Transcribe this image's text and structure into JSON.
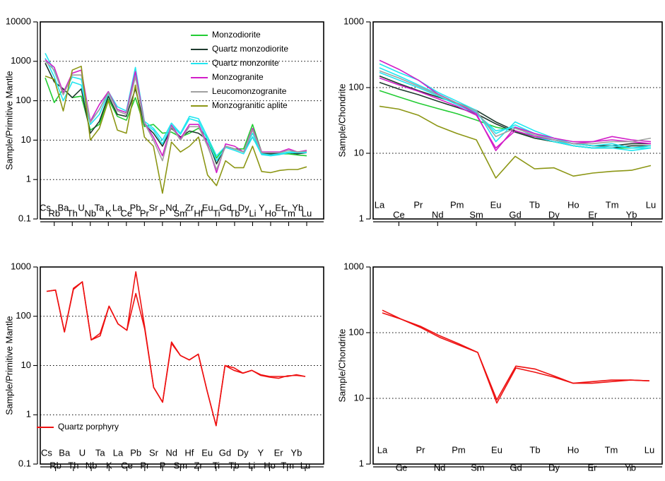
{
  "chart_data": [
    {
      "type": "line",
      "ylabel": "Sample/Primitive Mantle",
      "yscale": "log",
      "ylim": [
        0.1,
        10000
      ],
      "yticks": [
        "0.1",
        "1",
        "10",
        "100",
        "1000",
        "10000"
      ],
      "grid": [
        1,
        10,
        100,
        1000
      ],
      "legend_position": "top-right",
      "categories": [
        "Cs",
        "Rb",
        "Ba",
        "Th",
        "U",
        "Nb",
        "Ta",
        "K",
        "La",
        "Ce",
        "Pb",
        "Pr",
        "Sr",
        "P",
        "Nd",
        "Sm",
        "Zr",
        "Hf",
        "Eu",
        "Ti",
        "Gd",
        "Tb",
        "Dy",
        "Li",
        "Y",
        "Ho",
        "Er",
        "Tm",
        "Yb",
        "Lu"
      ],
      "series": [
        {
          "name": "Monzodiorite",
          "color": "#22cc33",
          "values": [
            [
              380,
              90,
              200,
              120,
              130,
              18,
              25,
              110,
              40,
              32,
              120,
              22,
              25,
              15,
              16,
              12,
              15,
              20,
              12,
              3.5,
              7,
              6,
              6,
              25,
              5,
              4.5,
              4.5,
              4.5,
              4.2,
              4
            ]
          ]
        },
        {
          "name": "Quartz monzodiorite",
          "color": "#1e3a2e",
          "values": [
            [
              900,
              300,
              200,
              120,
              200,
              15,
              30,
              130,
              45,
              40,
              200,
              25,
              15,
              7,
              20,
              12,
              17,
              15,
              10,
              2.5,
              7,
              6,
              5,
              12,
              4.5,
              4.5,
              4.5,
              4.8,
              4.5,
              4.8
            ]
          ]
        },
        {
          "name": "Quartz monzonite",
          "color": "#22e6f0",
          "values": [
            [
              1600,
              550,
              150,
              400,
              350,
              30,
              60,
              170,
              70,
              55,
              700,
              30,
              20,
              10,
              27,
              15,
              40,
              35,
              12,
              4,
              7,
              6,
              5,
              15,
              4.5,
              4.2,
              4.5,
              5,
              5,
              5
            ],
            [
              1200,
              400,
              100,
              300,
              250,
              25,
              45,
              150,
              60,
              50,
              450,
              26,
              18,
              8,
              24,
              14,
              35,
              30,
              10,
              3,
              6.5,
              5.5,
              4.5,
              12,
              4.3,
              4,
              4.3,
              4.8,
              4.8,
              4.8
            ]
          ]
        },
        {
          "name": "Monzogranite",
          "color": "#d21ec8",
          "values": [
            [
              1100,
              700,
              160,
              500,
              600,
              30,
              80,
              170,
              60,
              50,
              550,
              28,
              12,
              4,
              24,
              11,
              25,
              25,
              8,
              1.5,
              8,
              7,
              5,
              20,
              5,
              5,
              5,
              6,
              5,
              5.5
            ]
          ]
        },
        {
          "name": "Leucomonzogranite",
          "color": "#a0a0a0",
          "values": [
            [
              1000,
              600,
              140,
              450,
              450,
              28,
              60,
              160,
              55,
              45,
              400,
              27,
              10,
              3,
              22,
              10,
              22,
              22,
              7,
              1.8,
              7,
              6,
              5,
              18,
              4.8,
              4.8,
              4.8,
              5.5,
              5,
              5.2
            ]
          ]
        },
        {
          "name": "Monzogranitic aplite",
          "color": "#8c9614",
          "values": [
            [
              420,
              350,
              55,
              600,
              750,
              10,
              20,
              100,
              18,
              15,
              250,
              12,
              7,
              0.45,
              9,
              5,
              7,
              12,
              1.3,
              0.7,
              3,
              2,
              2,
              7,
              1.6,
              1.5,
              1.7,
              1.8,
              1.8,
              2.1
            ]
          ]
        }
      ]
    },
    {
      "type": "line",
      "ylabel": "Sample/Chondrite",
      "yscale": "log",
      "ylim": [
        1,
        1000
      ],
      "yticks": [
        "1",
        "10",
        "100",
        "1000"
      ],
      "grid": [
        10,
        100
      ],
      "categories": [
        "La",
        "Ce",
        "Pr",
        "Nd",
        "Pm",
        "Sm",
        "Eu",
        "Gd",
        "Tb",
        "Dy",
        "Ho",
        "Er",
        "Tm",
        "Yb",
        "Lu"
      ],
      "series": [
        {
          "name": "Monzodiorite",
          "color": "#22cc33",
          "values": [
            [
              90,
              72,
              58,
              48,
              40,
              32,
              25,
              22,
              17,
              15,
              13,
              12,
              12,
              12,
              12
            ]
          ]
        },
        {
          "name": "Quartz monzodiorite",
          "color": "#1e3a2e",
          "values": [
            [
              150,
              115,
              90,
              72,
              58,
              45,
              30,
              22,
              18,
              16,
              14,
              13,
              13,
              14,
              14
            ],
            [
              120,
              95,
              78,
              62,
              50,
              40,
              28,
              21,
              17,
              15,
              13,
              12,
              12,
              13,
              13
            ]
          ]
        },
        {
          "name": "Quartz monzonite",
          "color": "#22e6f0",
          "values": [
            [
              230,
              170,
              130,
              85,
              62,
              45,
              15,
              30,
              22,
              17,
              14,
              13,
              14,
              12,
              13
            ],
            [
              200,
              150,
              110,
              80,
              58,
              42,
              20,
              27,
              20,
              16,
              13,
              12,
              13,
              12,
              12
            ],
            [
              170,
              130,
              100,
              75,
              55,
              40,
              22,
              25,
              18,
              15,
              13,
              12,
              12,
              11,
              12
            ]
          ]
        },
        {
          "name": "Monzogranite",
          "color": "#d21ec8",
          "values": [
            [
              260,
              190,
              130,
              80,
              58,
              40,
              11,
              25,
              20,
              17,
              15,
              15,
              18,
              16,
              15
            ],
            [
              140,
              110,
              88,
              68,
              52,
              38,
              12,
              22,
              18,
              16,
              14,
              15,
              16,
              15,
              14
            ]
          ]
        },
        {
          "name": "Leucomonzogranite",
          "color": "#a0a0a0",
          "values": [
            [
              180,
              140,
              105,
              78,
              58,
              44,
              18,
              24,
              19,
              16,
              14,
              14,
              15,
              15,
              17
            ]
          ]
        },
        {
          "name": "Monzogranitic aplite",
          "color": "#8c9614",
          "values": [
            [
              52,
              47,
              38,
              26,
              20,
              16,
              4.2,
              9,
              5.8,
              6,
              4.5,
              5,
              5.3,
              5.5,
              6.5
            ]
          ]
        }
      ]
    },
    {
      "type": "line",
      "ylabel": "Sample/Primitive Mantle",
      "yscale": "log",
      "ylim": [
        0.1,
        1000
      ],
      "yticks": [
        "0.1",
        "1",
        "10",
        "100",
        "1000"
      ],
      "grid": [
        1,
        10,
        100
      ],
      "legend_position": "bottom-left",
      "categories": [
        "Cs",
        "Rb",
        "Ba",
        "Th",
        "U",
        "Nb",
        "Ta",
        "K",
        "La",
        "Ce",
        "Pb",
        "Pr",
        "Sr",
        "P",
        "Nd",
        "Sm",
        "Hf",
        "Zr",
        "Eu",
        "Ti",
        "Gd",
        "Tb",
        "Dy",
        "Li",
        "Y",
        "Ho",
        "Er",
        "Tm",
        "Yb",
        "Lu"
      ],
      "series": [
        {
          "name": "Quartz porphyry",
          "color": "#ee1111",
          "values": [
            [
              320,
              340,
              48,
              370,
              500,
              33,
              45,
              160,
              70,
              52,
              800,
              60,
              3.6,
              1.8,
              30,
              16,
              13,
              17,
              3,
              0.6,
              10,
              9,
              7,
              8,
              6.5,
              6,
              6,
              6,
              6.5,
              6
            ],
            [
              320,
              340,
              48,
              350,
              500,
              33,
              40,
              160,
              70,
              52,
              290,
              55,
              3.6,
              1.8,
              28,
              16,
              13,
              17,
              3,
              0.6,
              10,
              8,
              7,
              8,
              6.3,
              5.8,
              5.5,
              6.2,
              6.3,
              6
            ]
          ]
        }
      ]
    },
    {
      "type": "line",
      "ylabel": "Sample/Chondrite",
      "yscale": "log",
      "ylim": [
        1,
        1000
      ],
      "yticks": [
        "1",
        "10",
        "100",
        "1000"
      ],
      "grid": [
        10,
        100
      ],
      "categories": [
        "La",
        "Ce",
        "Pr",
        "Nd",
        "Pm",
        "Sm",
        "Eu",
        "Gd",
        "Tb",
        "Dy",
        "Ho",
        "Er",
        "Tm",
        "Yb",
        "Lu"
      ],
      "series": [
        {
          "name": "Quartz porphyry",
          "color": "#ee1111",
          "values": [
            [
              220,
              160,
              125,
              90,
              68,
              50,
              9.5,
              31,
              28,
              22,
              17,
              18,
              19,
              19,
              18.5
            ],
            [
              200,
              160,
              120,
              85,
              65,
              50,
              8.5,
              29,
              25,
              21,
              17,
              17,
              18,
              19,
              18.5
            ]
          ]
        }
      ]
    }
  ]
}
